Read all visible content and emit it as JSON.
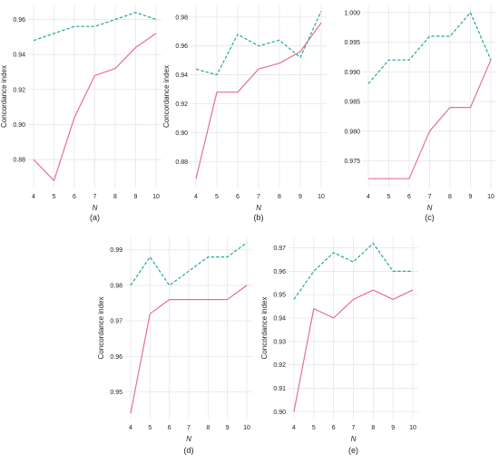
{
  "colors": {
    "solid": "#e8708a",
    "dashed": "#26a69a",
    "grid": "#e6e6e6"
  },
  "chart_data": [
    {
      "panel_label": "(a)",
      "type": "line",
      "xlabel": "N",
      "ylabel": "Concordance index",
      "x": [
        4,
        5,
        6,
        7,
        8,
        9,
        10
      ],
      "xticks": [
        "4",
        "5",
        "6",
        "7",
        "8",
        "9",
        "10"
      ],
      "ylim": [
        0.864,
        0.968
      ],
      "yticks": [
        0.88,
        0.9,
        0.92,
        0.94,
        0.96
      ],
      "yticklabels": [
        "0.88",
        "0.90",
        "0.92",
        "0.94",
        "0.96"
      ],
      "grid": true,
      "series": [
        {
          "style": "solid",
          "values": [
            0.88,
            0.868,
            0.904,
            0.928,
            0.932,
            0.944,
            0.952
          ]
        },
        {
          "style": "dashed",
          "values": [
            0.948,
            0.952,
            0.956,
            0.956,
            0.96,
            0.964,
            0.96
          ]
        }
      ]
    },
    {
      "panel_label": "(b)",
      "type": "line",
      "xlabel": "N",
      "ylabel": "Concordance index",
      "x": [
        4,
        5,
        6,
        7,
        8,
        9,
        10
      ],
      "xticks": [
        "4",
        "5",
        "6",
        "7",
        "8",
        "9",
        "10"
      ],
      "ylim": [
        0.862,
        0.988
      ],
      "yticks": [
        0.88,
        0.9,
        0.92,
        0.94,
        0.96,
        0.98
      ],
      "yticklabels": [
        "0.88",
        "0.90",
        "0.92",
        "0.94",
        "0.96",
        "0.98"
      ],
      "grid": true,
      "series": [
        {
          "style": "solid",
          "values": [
            0.868,
            0.928,
            0.928,
            0.944,
            0.948,
            0.956,
            0.976
          ]
        },
        {
          "style": "dashed",
          "values": [
            0.944,
            0.94,
            0.968,
            0.96,
            0.964,
            0.952,
            0.984
          ]
        }
      ]
    },
    {
      "panel_label": "(c)",
      "type": "line",
      "xlabel": "N",
      "ylabel": "",
      "x": [
        4,
        5,
        6,
        7,
        8,
        9,
        10
      ],
      "xticks": [
        "4",
        "5",
        "6",
        "7",
        "8",
        "9",
        "10"
      ],
      "ylim": [
        0.9705,
        1.0012
      ],
      "yticks": [
        0.975,
        0.98,
        0.985,
        0.99,
        0.995,
        1.0
      ],
      "yticklabels": [
        "0.975",
        "0.980",
        "0.985",
        "0.990",
        "0.995",
        "1.000"
      ],
      "grid": true,
      "series": [
        {
          "style": "solid",
          "values": [
            0.972,
            0.972,
            0.972,
            0.98,
            0.984,
            0.984,
            0.992
          ]
        },
        {
          "style": "dashed",
          "values": [
            0.988,
            0.992,
            0.992,
            0.996,
            0.996,
            1.0,
            0.992
          ]
        }
      ]
    },
    {
      "panel_label": "(d)",
      "type": "line",
      "xlabel": "N",
      "ylabel": "Concordance index",
      "x": [
        4,
        5,
        6,
        7,
        8,
        9,
        10
      ],
      "xticks": [
        "4",
        "5",
        "6",
        "7",
        "8",
        "9",
        "10"
      ],
      "ylim": [
        0.9425,
        0.9935
      ],
      "yticks": [
        0.95,
        0.96,
        0.97,
        0.98,
        0.99
      ],
      "yticklabels": [
        "0.95",
        "0.96",
        "0.97",
        "0.98",
        "0.99"
      ],
      "grid": true,
      "series": [
        {
          "style": "solid",
          "values": [
            0.944,
            0.972,
            0.976,
            0.976,
            0.976,
            0.976,
            0.98
          ]
        },
        {
          "style": "dashed",
          "values": [
            0.98,
            0.988,
            0.98,
            0.984,
            0.988,
            0.988,
            0.992
          ]
        }
      ]
    },
    {
      "panel_label": "(e)",
      "type": "line",
      "xlabel": "N",
      "ylabel": "Concordance index",
      "x": [
        4,
        5,
        6,
        7,
        8,
        9,
        10
      ],
      "xticks": [
        "4",
        "5",
        "6",
        "7",
        "8",
        "9",
        "10"
      ],
      "ylim": [
        0.897,
        0.9745
      ],
      "yticks": [
        0.9,
        0.91,
        0.92,
        0.93,
        0.94,
        0.95,
        0.96,
        0.97
      ],
      "yticklabels": [
        "0.90",
        "0.91",
        "0.92",
        "0.93",
        "0.94",
        "0.95",
        "0.96",
        "0.97"
      ],
      "grid": true,
      "series": [
        {
          "style": "solid",
          "values": [
            0.9,
            0.944,
            0.94,
            0.948,
            0.952,
            0.948,
            0.952
          ]
        },
        {
          "style": "dashed",
          "values": [
            0.948,
            0.96,
            0.968,
            0.964,
            0.972,
            0.96,
            0.96
          ]
        }
      ]
    }
  ]
}
